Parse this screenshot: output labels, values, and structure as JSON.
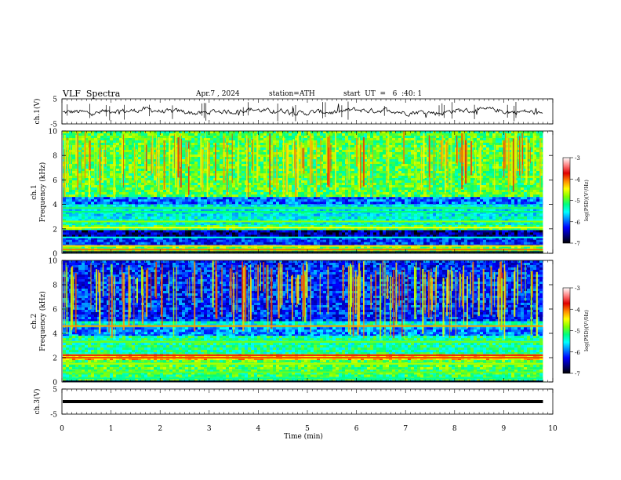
{
  "header": {
    "title": "VLF  Spectra",
    "date": "Apr.7 , 2024",
    "station": "station=ATH",
    "start_ut": "start  UT  =   6  :40: 1"
  },
  "colorbar": {
    "label": "log(PSD)(V²/Hz)",
    "ticks": [
      "-3",
      "-4",
      "-5",
      "-6",
      "-7"
    ],
    "colors": [
      "#ffffff",
      "#ff8080",
      "#e00000",
      "#ff8800",
      "#ffff00",
      "#80ff00",
      "#00ff80",
      "#00ffff",
      "#0080ff",
      "#0000ff",
      "#000080",
      "#000000"
    ]
  },
  "chart_data": [
    {
      "type": "line",
      "name": "ch1-waveform",
      "ylabel": "ch.1(V)",
      "ylim": [
        -5,
        5
      ],
      "yticks": [
        "5",
        "-5"
      ],
      "x": [
        0,
        1,
        2,
        3,
        4,
        5,
        6,
        7,
        8,
        9,
        9.8
      ],
      "y": [
        0,
        0.2,
        -0.4,
        0.3,
        -0.2,
        0.1,
        -0.3,
        0.2,
        -0.1,
        0.3,
        -0.2
      ]
    },
    {
      "type": "heatmap",
      "name": "ch1-spectrogram",
      "ylabel": "Frequency  (kHz)",
      "channel_label": "ch.1",
      "ylim": [
        0,
        10
      ],
      "yticks": [
        "10",
        "8",
        "6",
        "4",
        "2",
        "0"
      ],
      "xlim": [
        0,
        10
      ],
      "bands": [
        {
          "f_from": 10.0,
          "f_to": 4.6,
          "level": -4.9
        },
        {
          "f_from": 4.6,
          "f_to": 4.0,
          "level": -6.0
        },
        {
          "f_from": 4.0,
          "f_to": 3.0,
          "level": -5.5
        },
        {
          "f_from": 3.0,
          "f_to": 2.3,
          "level": -5.4
        },
        {
          "f_from": 2.3,
          "f_to": 1.9,
          "level": -5.0
        },
        {
          "f_from": 1.9,
          "f_to": 1.3,
          "level": -6.6
        },
        {
          "f_from": 1.3,
          "f_to": 0.6,
          "level": -6.2
        },
        {
          "f_from": 0.6,
          "f_to": 0.0,
          "level": -4.8
        }
      ]
    },
    {
      "type": "heatmap",
      "name": "ch2-spectrogram",
      "ylabel": "Frequency  (kHz)",
      "channel_label": "ch.2",
      "ylim": [
        0,
        10
      ],
      "yticks": [
        "10",
        "8",
        "6",
        "4",
        "2",
        "0"
      ],
      "xlim": [
        0,
        10
      ],
      "bands": [
        {
          "f_from": 10.0,
          "f_to": 5.0,
          "level": -6.2
        },
        {
          "f_from": 5.0,
          "f_to": 4.5,
          "level": -5.4
        },
        {
          "f_from": 4.5,
          "f_to": 3.8,
          "level": -5.9
        },
        {
          "f_from": 3.8,
          "f_to": 2.3,
          "level": -5.2
        },
        {
          "f_from": 2.3,
          "f_to": 1.8,
          "level": -4.2
        },
        {
          "f_from": 1.8,
          "f_to": 1.0,
          "level": -4.9
        },
        {
          "f_from": 1.0,
          "f_to": 0.0,
          "level": -5.0
        }
      ]
    },
    {
      "type": "line",
      "name": "ch3-waveform",
      "ylabel": "ch.3(V)",
      "ylim": [
        -5,
        5
      ],
      "yticks": [
        "5",
        "-5"
      ],
      "x": [
        0,
        9.8
      ],
      "y": [
        0,
        0
      ]
    }
  ],
  "x_axis": {
    "label": "Time  (min)",
    "xlim": [
      0,
      10
    ],
    "ticks": [
      "0",
      "1",
      "2",
      "3",
      "4",
      "5",
      "6",
      "7",
      "8",
      "9",
      "10"
    ]
  }
}
